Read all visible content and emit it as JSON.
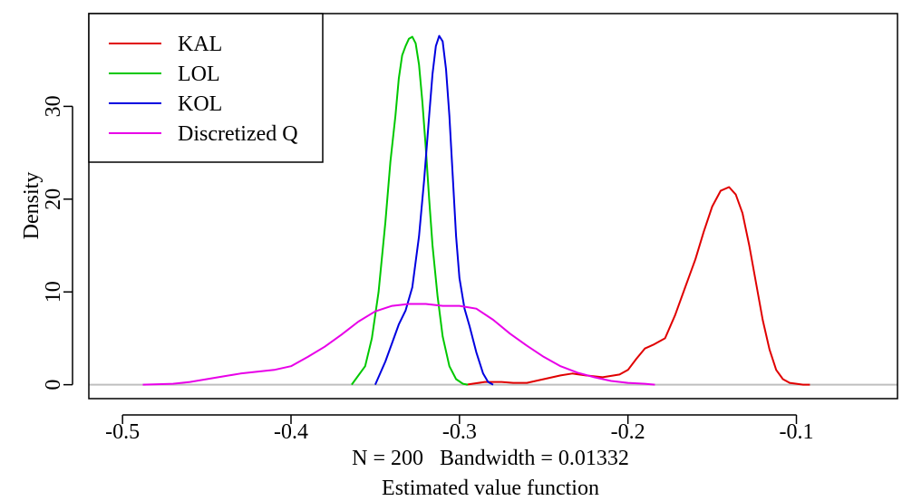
{
  "chart_data": {
    "type": "line",
    "title": "",
    "xlabel": "N = 200   Bandwidth = 0.01332",
    "xlabel2": "Estimated value function",
    "ylabel": "Density",
    "xlim": [
      -0.52,
      -0.04
    ],
    "ylim": [
      -1.5,
      40
    ],
    "x_ticks": [
      -0.5,
      -0.4,
      -0.3,
      -0.2,
      -0.1
    ],
    "x_tick_labels": [
      "-0.5",
      "-0.4",
      "-0.3",
      "-0.2",
      "-0.1"
    ],
    "y_ticks": [
      0,
      10,
      20,
      30
    ],
    "y_tick_labels": [
      "0",
      "10",
      "20",
      "30"
    ],
    "grid": false,
    "legend_position": "top-left",
    "baseline_color": "#bfbfbf",
    "series": [
      {
        "name": "KAL",
        "color": "#e00000",
        "x": [
          -0.296,
          -0.285,
          -0.275,
          -0.268,
          -0.26,
          -0.25,
          -0.24,
          -0.233,
          -0.225,
          -0.215,
          -0.205,
          -0.2,
          -0.195,
          -0.19,
          -0.185,
          -0.178,
          -0.172,
          -0.166,
          -0.16,
          -0.155,
          -0.15,
          -0.145,
          -0.14,
          -0.136,
          -0.132,
          -0.128,
          -0.124,
          -0.12,
          -0.116,
          -0.112,
          -0.108,
          -0.104,
          -0.1,
          -0.096,
          -0.092
        ],
        "y": [
          0,
          0.3,
          0.3,
          0.2,
          0.2,
          0.6,
          1.0,
          1.2,
          1.0,
          0.8,
          1.1,
          1.6,
          2.8,
          3.9,
          4.3,
          5.0,
          7.5,
          10.5,
          13.5,
          16.5,
          19.2,
          20.9,
          21.3,
          20.5,
          18.5,
          15.0,
          11.0,
          7.0,
          3.8,
          1.6,
          0.6,
          0.2,
          0.1,
          0,
          0
        ]
      },
      {
        "name": "LOL",
        "color": "#00c800",
        "x": [
          -0.364,
          -0.356,
          -0.352,
          -0.348,
          -0.344,
          -0.341,
          -0.338,
          -0.336,
          -0.334,
          -0.332,
          -0.33,
          -0.328,
          -0.326,
          -0.324,
          -0.322,
          -0.32,
          -0.318,
          -0.316,
          -0.313,
          -0.31,
          -0.306,
          -0.302,
          -0.298,
          -0.295
        ],
        "y": [
          0,
          2.0,
          5.0,
          10.0,
          17.5,
          24.0,
          29.0,
          33.0,
          35.5,
          36.5,
          37.3,
          37.5,
          36.8,
          34.5,
          30.5,
          25.5,
          20.0,
          15.0,
          9.5,
          5.2,
          2.0,
          0.6,
          0.1,
          0
        ]
      },
      {
        "name": "KOL",
        "color": "#0000e0",
        "x": [
          -0.35,
          -0.344,
          -0.34,
          -0.336,
          -0.332,
          -0.328,
          -0.324,
          -0.321,
          -0.318,
          -0.316,
          -0.314,
          -0.312,
          -0.31,
          -0.308,
          -0.306,
          -0.304,
          -0.302,
          -0.3,
          -0.297,
          -0.294,
          -0.29,
          -0.286,
          -0.283,
          -0.28
        ],
        "y": [
          0,
          2.5,
          4.5,
          6.5,
          8.0,
          10.5,
          16.0,
          22.0,
          29.0,
          33.5,
          36.5,
          37.6,
          37.0,
          34.0,
          29.0,
          22.5,
          16.0,
          11.5,
          8.2,
          6.3,
          3.5,
          1.2,
          0.3,
          0
        ]
      },
      {
        "name": "Discretized Q",
        "color": "#e800e8",
        "x": [
          -0.488,
          -0.47,
          -0.46,
          -0.45,
          -0.44,
          -0.43,
          -0.42,
          -0.41,
          -0.4,
          -0.39,
          -0.38,
          -0.37,
          -0.36,
          -0.35,
          -0.34,
          -0.33,
          -0.32,
          -0.31,
          -0.3,
          -0.29,
          -0.28,
          -0.27,
          -0.26,
          -0.25,
          -0.24,
          -0.23,
          -0.22,
          -0.21,
          -0.2,
          -0.19,
          -0.184
        ],
        "y": [
          0,
          0.1,
          0.3,
          0.6,
          0.9,
          1.2,
          1.4,
          1.6,
          2.0,
          3.0,
          4.1,
          5.4,
          6.8,
          7.9,
          8.5,
          8.7,
          8.7,
          8.5,
          8.5,
          8.2,
          7.0,
          5.5,
          4.2,
          3.0,
          2.0,
          1.3,
          0.8,
          0.4,
          0.2,
          0.1,
          0
        ]
      }
    ]
  }
}
